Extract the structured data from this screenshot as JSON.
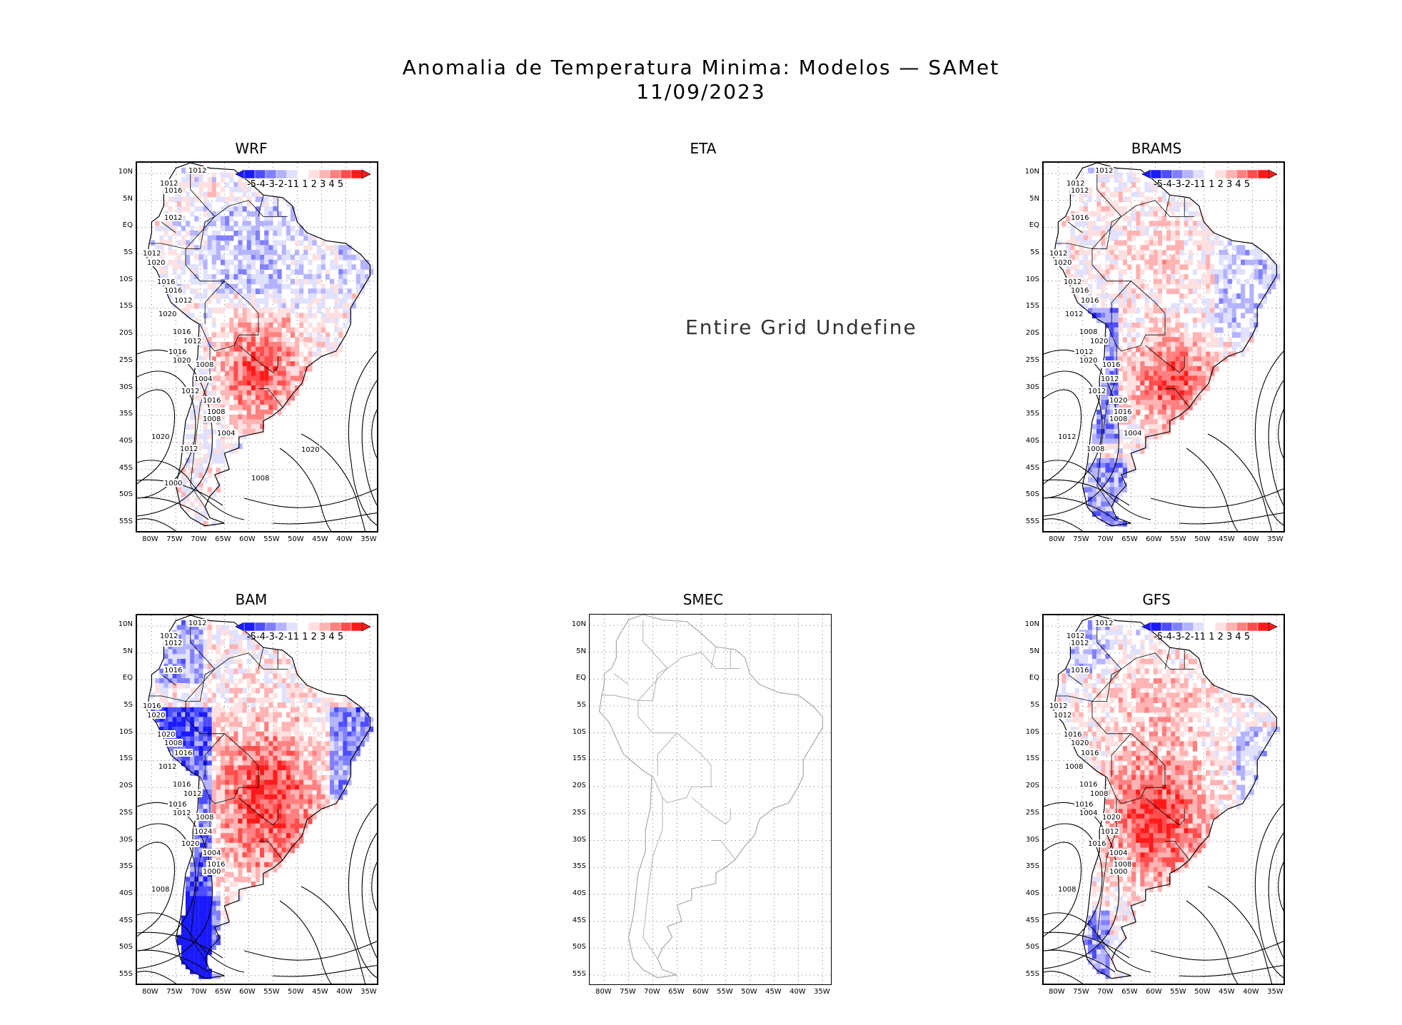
{
  "title": {
    "line1": "Anomalia de Temperatura Minima: Modelos — SAMet",
    "line2": "11/09/2023"
  },
  "axes": {
    "lat_ticks": [
      "10N",
      "5N",
      "EQ",
      "5S",
      "10S",
      "15S",
      "20S",
      "25S",
      "30S",
      "35S",
      "40S",
      "45S",
      "50S",
      "55S"
    ],
    "lon_ticks": [
      "80W",
      "75W",
      "70W",
      "65W",
      "60W",
      "55W",
      "50W",
      "45W",
      "40W",
      "35W"
    ]
  },
  "colorbar": {
    "labels": [
      "-5",
      "-4",
      "-3",
      "-2",
      "-1",
      "1",
      "1",
      "2",
      "3",
      "4",
      "5"
    ],
    "ticks_text": "-5-4-3-2-11 1 2 3 4 5",
    "colors": [
      "#1a1aff",
      "#4d4dff",
      "#8080ff",
      "#b3b3ff",
      "#e0e0ff",
      "#ffffff",
      "#ffe0e0",
      "#ffb3b3",
      "#ff8080",
      "#ff4d4d",
      "#ff1a1a"
    ]
  },
  "panels": [
    {
      "name": "WRF",
      "status": "data",
      "isobars": [
        "1012",
        "1012",
        "1016",
        "1012",
        "1012",
        "1020",
        "1016",
        "1016",
        "1012",
        "1020",
        "1016",
        "1012",
        "1016",
        "1020",
        "1008",
        "1004",
        "1012",
        "1016",
        "1008",
        "1008",
        "1020",
        "1004",
        "1012",
        "1000",
        "1008",
        "1020"
      ]
    },
    {
      "name": "ETA",
      "status": "undefined",
      "message": "Entire Grid Undefine"
    },
    {
      "name": "BRAMS",
      "status": "data",
      "isobars": [
        "1012",
        "1012",
        "1012",
        "1016",
        "1012",
        "1020",
        "1012",
        "1016",
        "1016",
        "1012",
        "1008",
        "1020",
        "1012",
        "1020",
        "1016",
        "1012",
        "1012",
        "1020",
        "1016",
        "1008",
        "1012",
        "1004",
        "1008"
      ]
    },
    {
      "name": "BAM",
      "status": "data",
      "isobars": [
        "1012",
        "1012",
        "1012",
        "1016",
        "1016",
        "1020",
        "1020",
        "1008",
        "1016",
        "1012",
        "1016",
        "1012",
        "1016",
        "1012",
        "1008",
        "1024",
        "1020",
        "1004",
        "1016",
        "1000",
        "1008"
      ]
    },
    {
      "name": "SMEC",
      "status": "empty"
    },
    {
      "name": "GFS",
      "status": "data",
      "isobars": [
        "1012",
        "1012",
        "1012",
        "1016",
        "1012",
        "1012",
        "1016",
        "1020",
        "1016",
        "1008",
        "1016",
        "1008",
        "1016",
        "1004",
        "1020",
        "1012",
        "1016",
        "1004",
        "1008",
        "1000",
        "1008"
      ]
    }
  ]
}
